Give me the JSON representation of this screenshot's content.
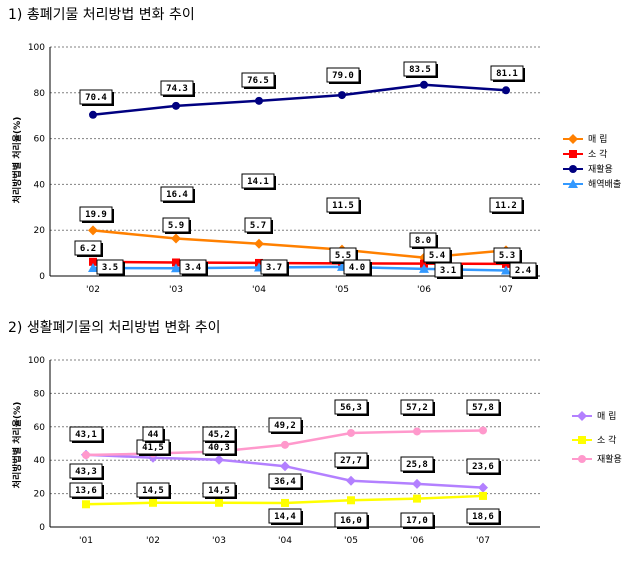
{
  "chart_data": [
    {
      "type": "line",
      "title": "1) 총폐기물 처리방법 변화 추이",
      "ylabel": "처리방법별 처리율(%)",
      "ylim": [
        0,
        100
      ],
      "yticks": [
        0,
        20,
        40,
        60,
        80,
        100
      ],
      "grid": true,
      "legend": "right",
      "categories": [
        "'02",
        "'03",
        "'04",
        "'05",
        "'06",
        "'07"
      ],
      "series": [
        {
          "name": "매  립",
          "color": "#ff8000",
          "marker": "diamond",
          "values": [
            19.9,
            16.4,
            14.1,
            11.5,
            8.0,
            11.2
          ],
          "labels": [
            "19.9",
            "16.4",
            "14.1",
            "11.5",
            "8.0",
            "11.2"
          ]
        },
        {
          "name": "소  각",
          "color": "#ff0000",
          "marker": "square",
          "values": [
            6.2,
            5.9,
            5.7,
            5.5,
            5.4,
            5.3
          ],
          "labels": [
            "6.2",
            "5.9",
            "5.7",
            "5.5",
            "5.4",
            "5.3"
          ]
        },
        {
          "name": "재활용",
          "color": "#000080",
          "marker": "circle",
          "values": [
            70.4,
            74.3,
            76.5,
            79.0,
            83.5,
            81.1
          ],
          "labels": [
            "70.4",
            "74.3",
            "76.5",
            "79.0",
            "83.5",
            "81.1"
          ]
        },
        {
          "name": "해역배출",
          "color": "#3399ff",
          "marker": "triangle",
          "values": [
            3.5,
            3.4,
            3.7,
            4.0,
            3.1,
            2.4
          ],
          "labels": [
            "3.5",
            "3.4",
            "3.7",
            "4.0",
            "3.1",
            "2.4"
          ]
        }
      ]
    },
    {
      "type": "line",
      "title": "2) 생활폐기물의 처리방법 변화 추이",
      "ylabel": "처리방법별 처리율(%)",
      "ylim": [
        0,
        100
      ],
      "yticks": [
        0,
        20,
        40,
        60,
        80,
        100
      ],
      "grid": true,
      "legend": "right",
      "categories": [
        "'01",
        "'02",
        "'03",
        "'04",
        "'05",
        "'06",
        "'07"
      ],
      "series": [
        {
          "name": "매 립",
          "color": "#b380ff",
          "marker": "diamond",
          "values": [
            43.3,
            41.5,
            40.3,
            36.4,
            27.7,
            25.8,
            23.6
          ],
          "labels": [
            "43,3",
            "41,5",
            "40,3",
            "36,4",
            "27,7",
            "25,8",
            "23,6"
          ]
        },
        {
          "name": "소 각",
          "color": "#ffff00",
          "marker": "square",
          "values": [
            13.6,
            14.5,
            14.5,
            14.4,
            16.0,
            17.0,
            18.6
          ],
          "labels": [
            "13,6",
            "14,5",
            "14,5",
            "14,4",
            "16,0",
            "17,0",
            "18,6"
          ]
        },
        {
          "name": "재활용",
          "color": "#ff99cc",
          "marker": "circle",
          "values": [
            43.1,
            44,
            45.2,
            49.2,
            56.3,
            57.2,
            57.8
          ],
          "labels": [
            "43,1",
            "44",
            "45,2",
            "49,2",
            "56,3",
            "57,2",
            "57,8"
          ]
        }
      ]
    }
  ]
}
